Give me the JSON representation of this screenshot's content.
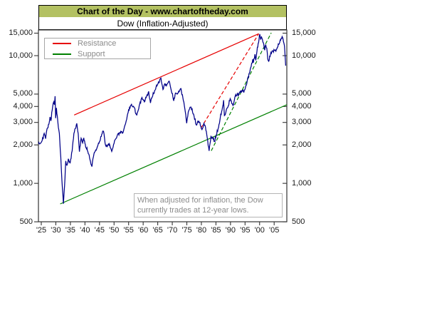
{
  "header": {
    "title": "Chart of the Day - www.chartoftheday.com",
    "subtitle": "Dow (Inflation-Adjusted)"
  },
  "colors": {
    "title_bar_bg": "#b3c162",
    "dow_line": "#000088",
    "resistance": "#e60000",
    "support": "#008000",
    "axis": "#333333",
    "legend_text": "#8a8a8a",
    "annotation_text": "#8c8c8c"
  },
  "chart_data": {
    "type": "line",
    "title": "Dow (Inflation-Adjusted)",
    "xlabel": "",
    "ylabel": "",
    "x_axis": {
      "range_years": [
        1924,
        2010
      ],
      "tick_years": [
        1925,
        1930,
        1935,
        1940,
        1945,
        1950,
        1955,
        1960,
        1965,
        1970,
        1975,
        1980,
        1985,
        1990,
        1995,
        2000,
        2005
      ],
      "tick_labels": [
        "'25",
        "'30",
        "'35",
        "'40",
        "'45",
        "'50",
        "'55",
        "'60",
        "'65",
        "'70",
        "'75",
        "'80",
        "'85",
        "'90",
        "'95",
        "'00",
        "'05"
      ]
    },
    "y_axis": {
      "scale": "log",
      "ylim": [
        500,
        15000
      ],
      "tick_values": [
        15000,
        10000,
        5000,
        4000,
        3000,
        2000,
        1000,
        500
      ],
      "tick_labels": [
        "15,000",
        "10,000",
        "5,000",
        "4,000",
        "3,000",
        "2,000",
        "1,000",
        "500"
      ],
      "sides": [
        "left",
        "right"
      ]
    },
    "grid": false,
    "legend": {
      "position": "top-left",
      "entries": [
        {
          "label": "Resistance",
          "color": "#e60000"
        },
        {
          "label": "Support",
          "color": "#008000"
        }
      ]
    },
    "annotation": "When adjusted for inflation, the Dow currently trades at 12-year lows.",
    "annotation_lines": [
      "When adjusted for inflation, the Dow",
      "currently trades at 12-year lows."
    ],
    "series": [
      {
        "name": "Dow (Inflation-Adjusted)",
        "style": "solid",
        "color": "#000088",
        "points": [
          [
            1924.0,
            2050
          ],
          [
            1925.3,
            2150
          ],
          [
            1926.0,
            2450
          ],
          [
            1926.5,
            2250
          ],
          [
            1927.0,
            2700
          ],
          [
            1927.6,
            2900
          ],
          [
            1928.0,
            3300
          ],
          [
            1928.3,
            3100
          ],
          [
            1928.9,
            4000
          ],
          [
            1929.3,
            4350
          ],
          [
            1929.55,
            4150
          ],
          [
            1929.75,
            4800
          ],
          [
            1929.95,
            3250
          ],
          [
            1930.2,
            3900
          ],
          [
            1930.7,
            3000
          ],
          [
            1931.2,
            2450
          ],
          [
            1931.7,
            1600
          ],
          [
            1932.1,
            1050
          ],
          [
            1932.6,
            690
          ],
          [
            1933.0,
            950
          ],
          [
            1933.4,
            1500
          ],
          [
            1933.8,
            1380
          ],
          [
            1934.3,
            1560
          ],
          [
            1934.9,
            1430
          ],
          [
            1935.6,
            1800
          ],
          [
            1936.2,
            2450
          ],
          [
            1936.7,
            2700
          ],
          [
            1937.2,
            2950
          ],
          [
            1937.7,
            2450
          ],
          [
            1938.1,
            1780
          ],
          [
            1938.7,
            2250
          ],
          [
            1939.2,
            2080
          ],
          [
            1939.6,
            2260
          ],
          [
            1940.0,
            2060
          ],
          [
            1940.4,
            1900
          ],
          [
            1941.0,
            1780
          ],
          [
            1941.9,
            1480
          ],
          [
            1942.4,
            1360
          ],
          [
            1943.1,
            1700
          ],
          [
            1944.0,
            1850
          ],
          [
            1945.0,
            2120
          ],
          [
            1945.9,
            2450
          ],
          [
            1946.4,
            2560
          ],
          [
            1946.9,
            2060
          ],
          [
            1947.6,
            1930
          ],
          [
            1948.4,
            2030
          ],
          [
            1949.2,
            1780
          ],
          [
            1950.0,
            2070
          ],
          [
            1951.0,
            2330
          ],
          [
            1952.0,
            2520
          ],
          [
            1953.0,
            2470
          ],
          [
            1954.0,
            2950
          ],
          [
            1955.0,
            3750
          ],
          [
            1956.0,
            4150
          ],
          [
            1957.0,
            3900
          ],
          [
            1957.8,
            3420
          ],
          [
            1958.8,
            4150
          ],
          [
            1959.6,
            4700
          ],
          [
            1960.1,
            4480
          ],
          [
            1960.6,
            4400
          ],
          [
            1961.2,
            4850
          ],
          [
            1961.9,
            5250
          ],
          [
            1962.5,
            4250
          ],
          [
            1963.1,
            4750
          ],
          [
            1964.1,
            5400
          ],
          [
            1965.1,
            6050
          ],
          [
            1966.1,
            6700
          ],
          [
            1966.8,
            5450
          ],
          [
            1967.4,
            6000
          ],
          [
            1968.0,
            5850
          ],
          [
            1968.9,
            6300
          ],
          [
            1969.6,
            5400
          ],
          [
            1970.5,
            4450
          ],
          [
            1971.1,
            5100
          ],
          [
            1971.8,
            5000
          ],
          [
            1972.2,
            5250
          ],
          [
            1973.0,
            5550
          ],
          [
            1973.8,
            4450
          ],
          [
            1974.3,
            3850
          ],
          [
            1974.95,
            2950
          ],
          [
            1975.5,
            3600
          ],
          [
            1976.1,
            3950
          ],
          [
            1976.8,
            3820
          ],
          [
            1977.5,
            3350
          ],
          [
            1978.2,
            2880
          ],
          [
            1978.8,
            3080
          ],
          [
            1979.5,
            2980
          ],
          [
            1980.2,
            2640
          ],
          [
            1980.9,
            2950
          ],
          [
            1981.4,
            2780
          ],
          [
            1982.0,
            2280
          ],
          [
            1982.65,
            1790
          ],
          [
            1983.3,
            2320
          ],
          [
            1983.9,
            2260
          ],
          [
            1984.5,
            2120
          ],
          [
            1985.1,
            2380
          ],
          [
            1985.9,
            2730
          ],
          [
            1986.5,
            3280
          ],
          [
            1987.1,
            3750
          ],
          [
            1987.65,
            4480
          ],
          [
            1987.9,
            3380
          ],
          [
            1988.4,
            3580
          ],
          [
            1989.1,
            3950
          ],
          [
            1989.9,
            4620
          ],
          [
            1990.3,
            4420
          ],
          [
            1990.85,
            4060
          ],
          [
            1991.5,
            4720
          ],
          [
            1992.1,
            4900
          ],
          [
            1993.1,
            5080
          ],
          [
            1994.0,
            5300
          ],
          [
            1994.6,
            5180
          ],
          [
            1995.1,
            5560
          ],
          [
            1995.9,
            6650
          ],
          [
            1996.5,
            7300
          ],
          [
            1997.1,
            8250
          ],
          [
            1997.65,
            9350
          ],
          [
            1997.85,
            8800
          ],
          [
            1998.4,
            10250
          ],
          [
            1998.7,
            9150
          ],
          [
            1999.1,
            10900
          ],
          [
            1999.5,
            12400
          ],
          [
            1999.8,
            13400
          ],
          [
            2000.05,
            14800
          ],
          [
            2000.35,
            13400
          ],
          [
            2000.65,
            13950
          ],
          [
            2001.0,
            13300
          ],
          [
            2001.4,
            12400
          ],
          [
            2001.75,
            11000
          ],
          [
            2002.1,
            12200
          ],
          [
            2002.45,
            11400
          ],
          [
            2002.8,
            9400
          ],
          [
            2003.15,
            9050
          ],
          [
            2003.9,
            10550
          ],
          [
            2004.6,
            10800
          ],
          [
            2005.1,
            11050
          ],
          [
            2005.6,
            10850
          ],
          [
            2006.1,
            11650
          ],
          [
            2006.9,
            12700
          ],
          [
            2007.4,
            13600
          ],
          [
            2007.75,
            14150
          ],
          [
            2008.2,
            12800
          ],
          [
            2008.55,
            11900
          ],
          [
            2008.75,
            10100
          ],
          [
            2008.95,
            8350
          ]
        ]
      },
      {
        "name": "Resistance",
        "style": "solid",
        "color": "#e60000",
        "points": [
          [
            1936.3,
            3430
          ],
          [
            1999.7,
            14850
          ]
        ]
      },
      {
        "name": "Resistance (projected)",
        "style": "dashed",
        "color": "#e60000",
        "points": [
          [
            1979.8,
            2700
          ],
          [
            1999.7,
            14850
          ]
        ]
      },
      {
        "name": "Support",
        "style": "solid",
        "color": "#008000",
        "points": [
          [
            1931.5,
            690
          ],
          [
            2009.6,
            4150
          ]
        ]
      },
      {
        "name": "Support (projected)",
        "style": "dashed",
        "color": "#008000",
        "points": [
          [
            1983.4,
            1800
          ],
          [
            2004.0,
            15100
          ]
        ]
      }
    ]
  }
}
